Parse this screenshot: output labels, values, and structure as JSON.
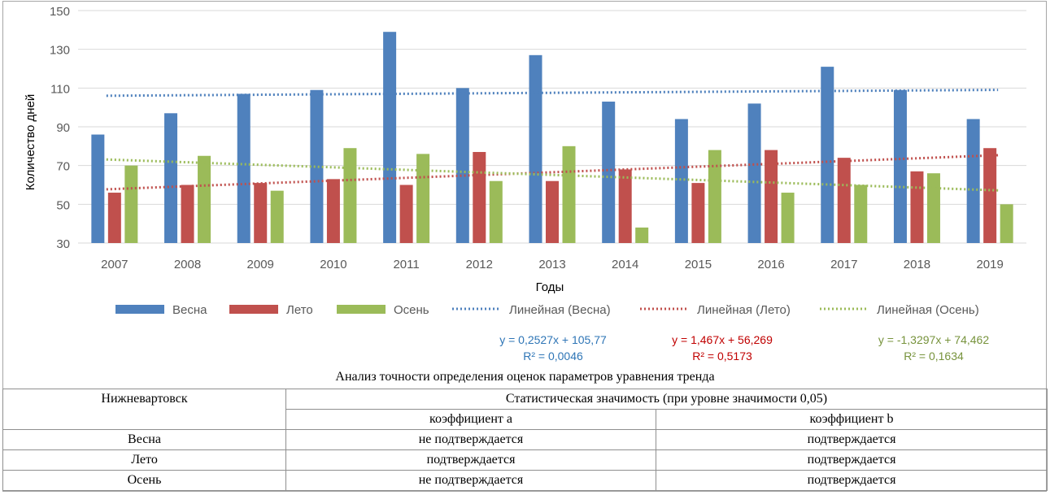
{
  "chart_data": {
    "type": "bar",
    "categories": [
      "2007",
      "2008",
      "2009",
      "2010",
      "2011",
      "2012",
      "2013",
      "2014",
      "2015",
      "2016",
      "2017",
      "2018",
      "2019"
    ],
    "series": [
      {
        "name": "Весна",
        "color": "#4f81bd",
        "values": [
          86,
          97,
          107,
          109,
          139,
          110,
          127,
          103,
          94,
          102,
          121,
          109,
          94
        ]
      },
      {
        "name": "Лето",
        "color": "#c0504d",
        "values": [
          56,
          60,
          61,
          63,
          60,
          77,
          62,
          68,
          61,
          78,
          74,
          67,
          79
        ]
      },
      {
        "name": "Осень",
        "color": "#9bbb59",
        "values": [
          70,
          75,
          57,
          79,
          76,
          62,
          80,
          38,
          78,
          56,
          60,
          66,
          50
        ]
      }
    ],
    "trendlines": [
      {
        "name": "Линейная (Весна)",
        "color": "#4f81bd",
        "slope": 0.2527,
        "intercept": 105.77,
        "equation": "y = 0,2527x  + 105,77",
        "r2": "R² = 0,0046"
      },
      {
        "name": "Линейная (Лето)",
        "color": "#c0504d",
        "slope": 1.467,
        "intercept": 56.269,
        "equation": "y = 1,467x + 56,269",
        "r2": "R² = 0,5173"
      },
      {
        "name": "Линейная (Осень)",
        "color": "#9bbb59",
        "slope": -1.3297,
        "intercept": 74.462,
        "equation": "y = -1,3297x + 74,462",
        "r2": "R² = 0,1634"
      }
    ],
    "equation_colors": [
      "#2e75b6",
      "#c00000",
      "#77933c"
    ],
    "title": "",
    "xlabel": "Годы",
    "ylabel": "Количество дней",
    "ylim": [
      30,
      150
    ],
    "yticks": [
      "30",
      "50",
      "70",
      "90",
      "110",
      "130",
      "150"
    ],
    "grid": true,
    "legend_position": "bottom"
  },
  "table": {
    "title": "Анализ точности определения оценок параметров уравнения тренда",
    "city": "Нижневартовск",
    "group_header": "Статистическая значимость (при уровне значимости 0,05)",
    "col_a": "коэффициент a",
    "col_b": "коэффициент b",
    "rows": [
      {
        "season": "Весна",
        "a": "не подтверждается",
        "b": "подтверждается"
      },
      {
        "season": "Лето",
        "a": "подтверждается",
        "b": "подтверждается"
      },
      {
        "season": "Осень",
        "a": "не подтверждается",
        "b": "подтверждается"
      }
    ]
  }
}
